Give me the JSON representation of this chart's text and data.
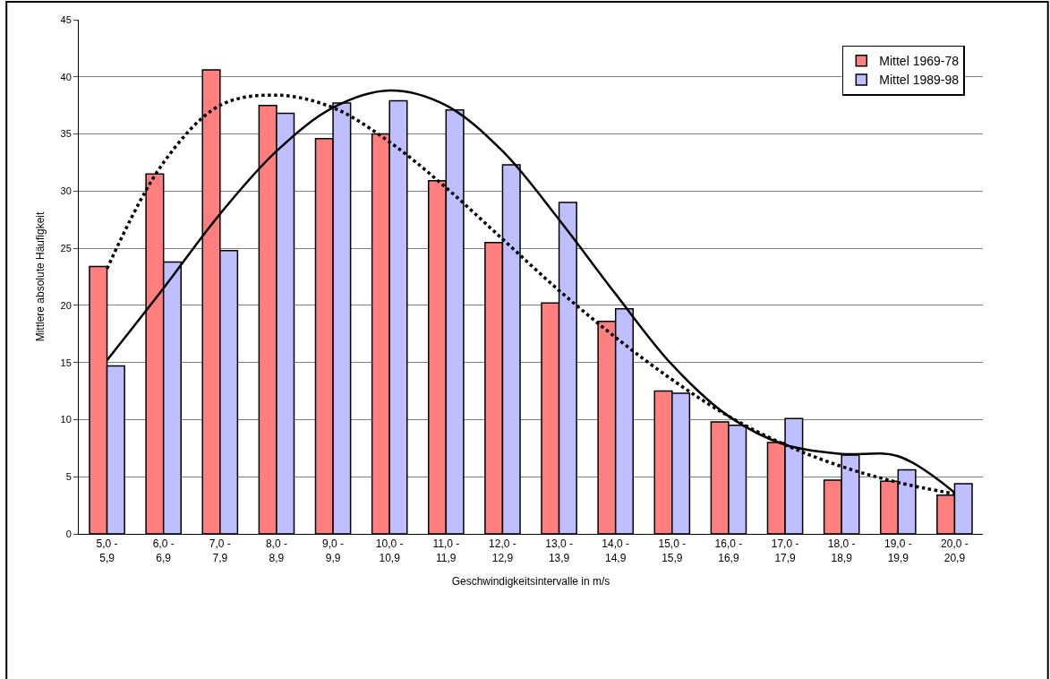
{
  "chart_data": {
    "type": "bar",
    "xlabel": "Geschwindigkeitsintervalle in m/s",
    "ylabel": "Mittlere absolute Häufigkeit",
    "categories": [
      "5,0 -\n5,9",
      "6,0 -\n6,9",
      "7,0 -\n7,9",
      "8,0 -\n8,9",
      "9,0 -\n9,9",
      "10,0 -\n10,9",
      "11,0 -\n11,9",
      "12,0 -\n12,9",
      "13,0 -\n13,9",
      "14,0 -\n14,9",
      "15,0 -\n15,9",
      "16,0 -\n16,9",
      "17,0 -\n17,9",
      "18,0 -\n18,9",
      "19,0 -\n19,9",
      "20,0 -\n20,9"
    ],
    "series": [
      {
        "name": "Mittel 1969-78",
        "color": "#ff7f7f",
        "values": [
          23.4,
          31.5,
          40.6,
          37.5,
          34.6,
          35.0,
          30.9,
          25.5,
          20.2,
          18.6,
          12.5,
          9.8,
          8.0,
          4.7,
          4.6,
          3.4
        ]
      },
      {
        "name": "Mittel 1989-98",
        "color": "#bfbfff",
        "values": [
          14.7,
          23.8,
          24.8,
          36.8,
          37.7,
          37.9,
          37.1,
          32.3,
          29.0,
          19.7,
          12.3,
          9.5,
          10.1,
          6.9,
          5.6,
          4.4
        ]
      },
      {
        "type": "line",
        "color": "#000000",
        "line_style": "dotted",
        "values": [
          23.2,
          32.5,
          37.5,
          38.4,
          37.3,
          34.3,
          30.3,
          25.8,
          21.3,
          17.2,
          13.5,
          10.3,
          7.8,
          5.9,
          4.5,
          3.5
        ]
      },
      {
        "type": "line",
        "color": "#000000",
        "line_style": "solid",
        "values": [
          15.2,
          21.5,
          28.0,
          33.5,
          37.3,
          38.8,
          37.5,
          33.5,
          27.5,
          21.0,
          14.8,
          10.3,
          7.8,
          7.0,
          6.8,
          3.6
        ]
      }
    ],
    "ylim": [
      0,
      45
    ],
    "yticks": [
      0,
      5,
      10,
      15,
      20,
      25,
      30,
      35,
      40,
      45
    ],
    "grid": "y",
    "legend": "top right"
  }
}
